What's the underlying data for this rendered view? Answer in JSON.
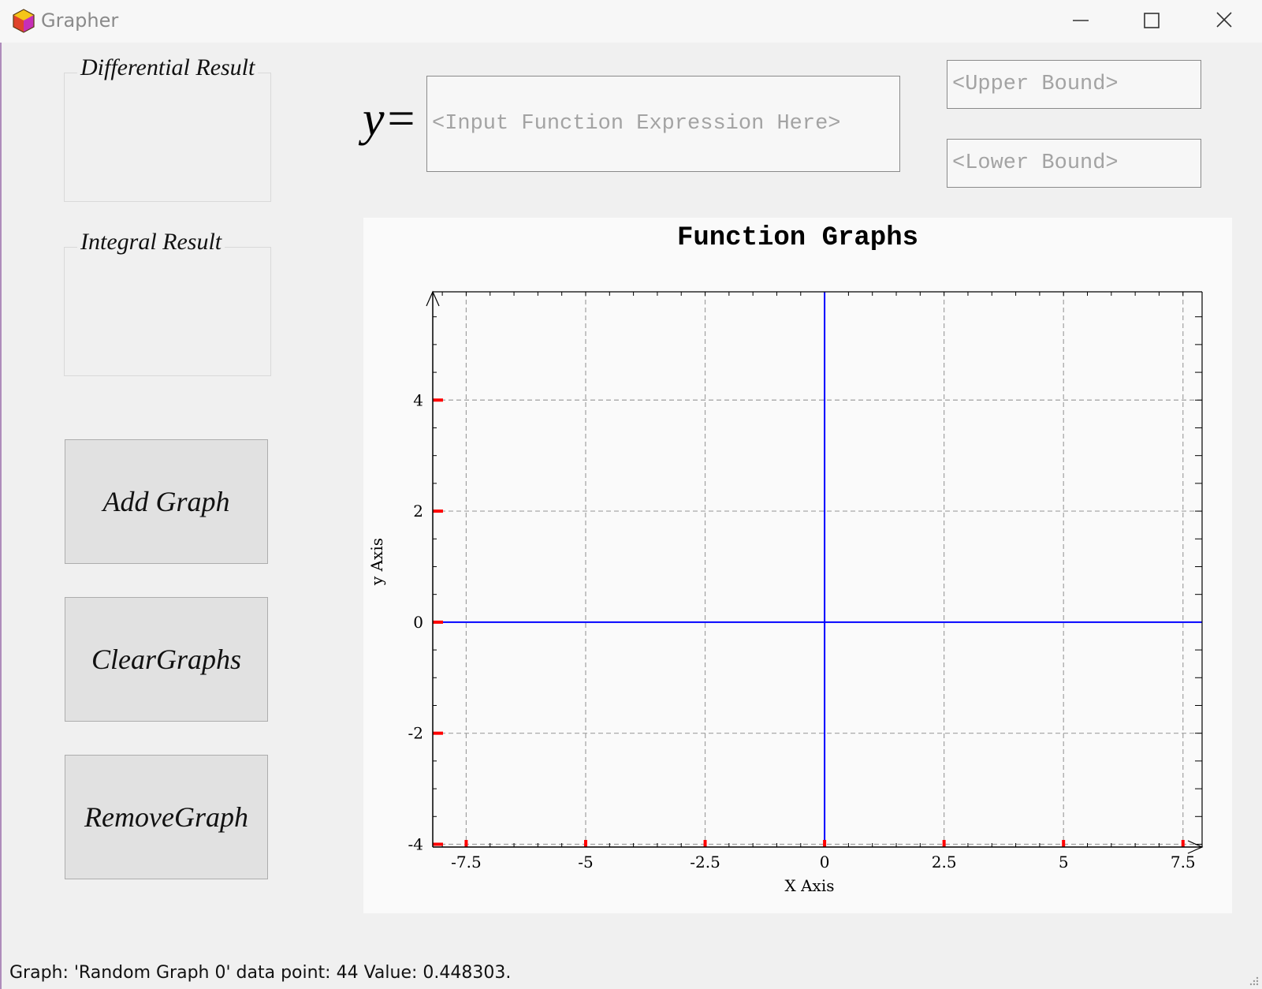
{
  "window": {
    "title": "Grapher"
  },
  "sidebar": {
    "differential_title": "Differential Result",
    "integral_title": "Integral Result",
    "buttons": {
      "add": "Add Graph",
      "clear": "ClearGraphs",
      "remove": "RemoveGraph"
    }
  },
  "inputs": {
    "y_prefix": "y=",
    "function_placeholder": "<Input Function Expression Here>",
    "upper_placeholder": "<Upper Bound>",
    "lower_placeholder": "<Lower Bound>"
  },
  "chart_data": {
    "type": "line",
    "title": "Function Graphs",
    "xlabel": "X Axis",
    "ylabel": "y Axis",
    "xlim": [
      -8.2,
      7.9
    ],
    "ylim": [
      -4.05,
      5.95
    ],
    "x_ticks": [
      -7.5,
      -5,
      -2.5,
      0,
      2.5,
      5,
      7.5
    ],
    "x_tick_labels": [
      "-7.5",
      "-5",
      "-2.5",
      "0",
      "2.5",
      "5",
      "7.5"
    ],
    "y_ticks": [
      -4,
      -2,
      0,
      2,
      4
    ],
    "y_tick_labels": [
      "-4",
      "-2",
      "0",
      "2",
      "4"
    ],
    "grid": true,
    "axis_color": "#0000ff",
    "tick_mark_color": "#ff0000",
    "grid_color": "#a0a0a0"
  },
  "status": {
    "text": "Graph: 'Random Graph 0' data point: 44 Value: 0.448303."
  }
}
